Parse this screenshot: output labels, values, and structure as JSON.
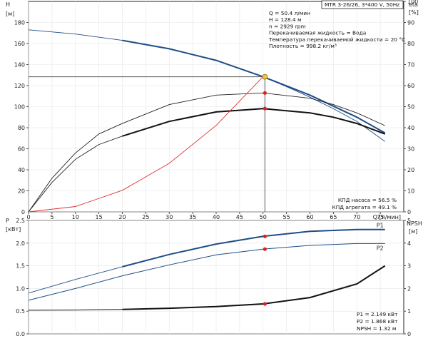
{
  "chart_data": [
    {
      "type": "line",
      "title": "MTR 3-26/26, 3*400 V, 50Hz",
      "left_axis": {
        "label": "H",
        "unit": "[м]",
        "ticks": [
          0,
          20,
          40,
          60,
          80,
          100,
          120,
          140,
          160,
          180
        ],
        "range": [
          0,
          200
        ]
      },
      "right_axis": {
        "label": "eta",
        "unit": "[%]",
        "ticks": [
          0,
          10,
          20,
          30,
          40,
          50,
          60,
          70,
          80,
          90,
          100
        ],
        "range": [
          0,
          100
        ]
      },
      "x_axis": {
        "label": "Q [л/мин]",
        "ticks": [
          0,
          5,
          10,
          15,
          20,
          25,
          30,
          35,
          40,
          45,
          50,
          55,
          60,
          65,
          70,
          75
        ],
        "range": [
          0,
          80
        ]
      },
      "grid": "on",
      "series": [
        {
          "role": "head_extended",
          "color": "#1f4d86",
          "x": [
            0,
            10,
            20,
            30,
            40,
            50,
            55,
            60,
            65,
            70,
            76
          ],
          "y": [
            173,
            169,
            163,
            155,
            144,
            128.4,
            119,
            109,
            98,
            86,
            67
          ]
        },
        {
          "role": "head",
          "color": "#1f4d86",
          "x": [
            20,
            30,
            40,
            50,
            60,
            70,
            76
          ],
          "y": [
            163,
            155,
            144,
            128.4,
            111,
            90,
            75
          ]
        },
        {
          "role": "eta_pump",
          "color": "#222222",
          "x": [
            0,
            5,
            10,
            15,
            20,
            30,
            40,
            50,
            60,
            65,
            70,
            76
          ],
          "y": [
            0,
            16,
            28,
            37,
            42,
            51,
            55.5,
            56.5,
            54,
            51,
            47,
            41
          ]
        },
        {
          "role": "eta_pump_extended",
          "color": "#222222",
          "x": [
            0,
            5,
            10,
            15,
            20
          ],
          "y": [
            0,
            16,
            28,
            37,
            42
          ]
        },
        {
          "role": "eta_unit",
          "color": "#222222",
          "x": [
            0,
            5,
            10,
            15,
            20,
            30,
            40,
            50,
            60,
            65,
            70,
            76
          ],
          "y": [
            0,
            14,
            25,
            32,
            36,
            43,
            47.5,
            49.1,
            47,
            45,
            42,
            37
          ]
        },
        {
          "role": "system_curve",
          "color": "#e03030",
          "x": [
            0,
            10,
            20,
            30,
            40,
            50
          ],
          "y": [
            0,
            5.1,
            20.5,
            46.2,
            82.2,
            128.4
          ]
        }
      ],
      "operating_point": {
        "x": 50.4,
        "y": 128.4
      },
      "annotations": [
        "Q = 50.4 л/мин",
        "H = 128.4 м",
        "n = 2929 rpm",
        "Перекачиваемая жидкость = Вода",
        "Температура перекачиваемой жидкости = 20 °C",
        "Плотность = 998.2 кг/м³"
      ],
      "efficiency_labels": [
        "КПД насоса = 56.5 %",
        "КПД агрегата = 49.1 %"
      ]
    },
    {
      "type": "line",
      "left_axis": {
        "label": "P",
        "unit": "[кВт]",
        "ticks": [
          "0.0",
          "0.5",
          "1.0",
          "1.5",
          "2.0",
          "2.5"
        ],
        "range": [
          0,
          2.5
        ]
      },
      "right_axis": {
        "label": "NPSH",
        "unit": "[м]",
        "ticks": [
          0,
          1,
          2,
          3,
          4,
          5
        ],
        "range": [
          0,
          5
        ]
      },
      "x_axis": {
        "label": "Q [л/мин]",
        "range": [
          0,
          80
        ]
      },
      "grid": "on",
      "series": [
        {
          "name": "P1",
          "color": "#1f4d86",
          "x": [
            0,
            10,
            20,
            30,
            40,
            50,
            60,
            70,
            76
          ],
          "y": [
            0.9,
            1.2,
            1.48,
            1.75,
            1.98,
            2.149,
            2.26,
            2.3,
            2.3
          ]
        },
        {
          "name": "P2",
          "color": "#1f4d86",
          "x": [
            0,
            10,
            20,
            30,
            40,
            50,
            60,
            70,
            76
          ],
          "y": [
            0.74,
            1.0,
            1.28,
            1.52,
            1.74,
            1.868,
            1.95,
            1.99,
            1.99
          ]
        },
        {
          "role": "npsh",
          "color": "#111111",
          "x": [
            0,
            10,
            20,
            30,
            40,
            50,
            60,
            70,
            76
          ],
          "y": [
            1.04,
            1.05,
            1.08,
            1.13,
            1.2,
            1.32,
            1.6,
            2.2,
            3.0
          ]
        }
      ],
      "operating_point": {
        "x": 50.4,
        "P1": 2.149,
        "P2": 1.868,
        "NPSH": 1.32
      },
      "result_labels": [
        "P1 = 2.149 кВт",
        "P2 = 1.868 кВт",
        "NPSH = 1.32 м"
      ]
    }
  ]
}
